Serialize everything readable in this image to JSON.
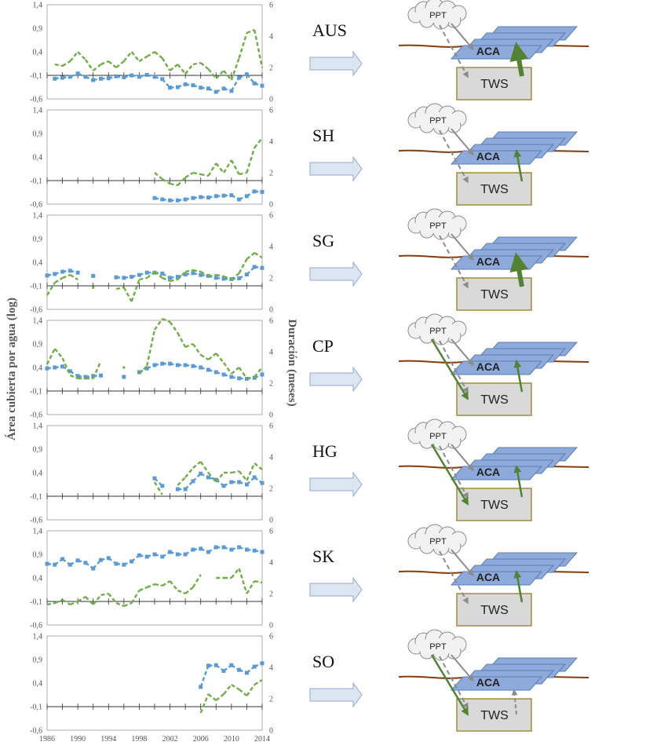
{
  "figure": {
    "ylabel_left": "Área cubierta por agua (log)",
    "ylabel_right": "Duración (meses)"
  },
  "colors": {
    "duration_series": "#70AD47",
    "area_series": "#5B9BD5",
    "arrow_green": "#548235",
    "arrow_gray": "#8C8C8C",
    "flow_arrow_fill": "#DCE6F2",
    "aca_fill": "#8EAADB",
    "tws_fill": "#D9D9D9",
    "tws_border": "#A08C3C",
    "ground_line": "#843C0C"
  },
  "diagram": {
    "ppt_label": "PPT",
    "aca_label": "ACA",
    "tws_label": "TWS"
  },
  "chart_data": [
    {
      "type": "line",
      "region": "AUS",
      "x_ticks": [
        "1986",
        "1990",
        "1994",
        "1998",
        "2002",
        "2006",
        "2010",
        "2014"
      ],
      "left_axis": {
        "ticks": [
          "1,4",
          "0,9",
          "0,4",
          "-0,1",
          "-0,6"
        ],
        "ylim": [
          -0.6,
          1.4
        ]
      },
      "right_axis": {
        "ticks": [
          "6",
          "4",
          "2",
          "0"
        ],
        "ylim": [
          0,
          6
        ]
      },
      "series": [
        {
          "axis": "left",
          "x": [
            1987,
            1988,
            1989,
            1990,
            1991,
            1992,
            1993,
            1994,
            1995,
            1996,
            1997,
            1998,
            1999,
            2000,
            2001,
            2002,
            2003,
            2004,
            2005,
            2006,
            2007,
            2008,
            2009,
            2010,
            2011,
            2012,
            2013,
            2014
          ],
          "values": [
            -0.17,
            -0.15,
            -0.13,
            -0.06,
            -0.13,
            -0.2,
            -0.17,
            -0.16,
            -0.12,
            -0.14,
            -0.1,
            -0.13,
            -0.09,
            -0.13,
            -0.18,
            -0.36,
            -0.35,
            -0.29,
            -0.31,
            -0.36,
            -0.38,
            -0.45,
            -0.38,
            -0.43,
            -0.15,
            -0.08,
            -0.27,
            -0.32
          ]
        },
        {
          "axis": "right",
          "x": [
            1987,
            1988,
            1989,
            1990,
            1991,
            1992,
            1993,
            1994,
            1995,
            1996,
            1997,
            1998,
            1999,
            2000,
            2001,
            2002,
            2003,
            2004,
            2005,
            2006,
            2007,
            2008,
            2009,
            2010,
            2011,
            2012,
            2013,
            2014
          ],
          "values": [
            2.2,
            2.1,
            2.4,
            3.0,
            2.5,
            1.8,
            2.2,
            2.4,
            2.0,
            2.4,
            3.0,
            2.4,
            2.7,
            3.0,
            2.6,
            1.8,
            2.2,
            1.6,
            2.2,
            2.3,
            1.9,
            1.3,
            1.8,
            1.2,
            2.6,
            4.2,
            4.4,
            2.0
          ]
        }
      ]
    },
    {
      "type": "line",
      "region": "SH",
      "x_ticks": [
        "1986",
        "1990",
        "1994",
        "1998",
        "2002",
        "2006",
        "2010",
        "2014"
      ],
      "left_axis": {
        "ticks": [
          "1,4",
          "0,9",
          "0,4",
          "-0,1",
          "-0,6"
        ],
        "ylim": [
          -0.6,
          1.4
        ]
      },
      "right_axis": {
        "ticks": [
          "6",
          "4",
          "2",
          "0"
        ],
        "ylim": [
          0,
          6
        ]
      },
      "series": [
        {
          "axis": "left",
          "x": [
            2000,
            2001,
            2002,
            2003,
            2004,
            2005,
            2006,
            2007,
            2008,
            2009,
            2010,
            2011,
            2012,
            2013,
            2014
          ],
          "values": [
            -0.47,
            -0.5,
            -0.52,
            -0.52,
            -0.5,
            -0.47,
            -0.45,
            -0.46,
            -0.43,
            -0.42,
            -0.41,
            -0.5,
            -0.43,
            -0.33,
            -0.34
          ]
        },
        {
          "axis": "right",
          "x": [
            2000,
            2001,
            2002,
            2003,
            2004,
            2005,
            2006,
            2007,
            2008,
            2009,
            2010,
            2011,
            2012,
            2013,
            2014
          ],
          "values": [
            2.0,
            1.6,
            1.3,
            1.2,
            1.7,
            2.0,
            1.9,
            1.8,
            2.6,
            2.0,
            2.8,
            1.9,
            2.0,
            3.6,
            4.2
          ]
        }
      ]
    },
    {
      "type": "line",
      "region": "SG",
      "x_ticks": [
        "1986",
        "1990",
        "1994",
        "1998",
        "2002",
        "2006",
        "2010",
        "2014"
      ],
      "left_axis": {
        "ticks": [
          "1,4",
          "0,9",
          "0,4",
          "-0,1",
          "-0,6"
        ],
        "ylim": [
          -0.6,
          1.4
        ]
      },
      "right_axis": {
        "ticks": [
          "6",
          "4",
          "2",
          "0"
        ],
        "ylim": [
          0,
          6
        ]
      },
      "series": [
        {
          "axis": "left",
          "x": [
            1986,
            1987,
            1988,
            1989,
            1990,
            1992,
            1995,
            1996,
            1997,
            1998,
            1999,
            2000,
            2001,
            2002,
            2003,
            2004,
            2005,
            2006,
            2007,
            2008,
            2009,
            2010,
            2011,
            2012,
            2013,
            2014
          ],
          "values": [
            0.12,
            0.15,
            0.2,
            0.22,
            0.18,
            0.11,
            0.08,
            0.07,
            0.09,
            0.13,
            0.18,
            0.18,
            0.16,
            0.07,
            0.09,
            0.14,
            0.17,
            0.13,
            0.11,
            0.07,
            0.05,
            0.04,
            0.06,
            0.14,
            0.3,
            0.28
          ]
        },
        {
          "axis": "right",
          "x": [
            1986,
            1987,
            1988,
            1989,
            1990,
            1992,
            1995,
            1996,
            1997,
            1998,
            1999,
            2000,
            2001,
            2002,
            2003,
            2004,
            2005,
            2006,
            2007,
            2008,
            2009,
            2010,
            2011,
            2012,
            2013,
            2014
          ],
          "values": [
            0.9,
            1.7,
            2.0,
            2.2,
            1.9,
            1.4,
            1.3,
            1.4,
            0.5,
            1.9,
            2.0,
            2.4,
            2.0,
            1.8,
            1.9,
            2.4,
            2.5,
            2.4,
            2.1,
            2.2,
            2.1,
            1.9,
            2.3,
            3.2,
            3.6,
            3.3
          ]
        }
      ]
    },
    {
      "type": "line",
      "region": "CP",
      "x_ticks": [
        "1986",
        "1990",
        "1994",
        "1998",
        "2002",
        "2006",
        "2010",
        "2014"
      ],
      "left_axis": {
        "ticks": [
          "1,4",
          "0,9",
          "0,4",
          "-0,1",
          "-0,6"
        ],
        "ylim": [
          -0.6,
          1.4
        ]
      },
      "right_axis": {
        "ticks": [
          "6",
          "4",
          "2",
          "0"
        ],
        "ylim": [
          0,
          6
        ]
      },
      "series": [
        {
          "axis": "left",
          "x": [
            1986,
            1987,
            1988,
            1989,
            1990,
            1991,
            1992,
            1993,
            1996,
            1998,
            1999,
            2000,
            2001,
            2002,
            2003,
            2004,
            2005,
            2006,
            2007,
            2008,
            2009,
            2010,
            2011,
            2012,
            2013,
            2014
          ],
          "values": [
            0.38,
            0.4,
            0.42,
            0.32,
            0.22,
            0.2,
            0.22,
            0.23,
            0.2,
            0.3,
            0.38,
            0.45,
            0.48,
            0.48,
            0.45,
            0.45,
            0.43,
            0.4,
            0.35,
            0.3,
            0.25,
            0.2,
            0.17,
            0.16,
            0.18,
            0.25
          ]
        },
        {
          "axis": "right",
          "x": [
            1986,
            1987,
            1988,
            1989,
            1990,
            1991,
            1992,
            1993,
            1996,
            1998,
            1999,
            2000,
            2001,
            2002,
            2003,
            2004,
            2005,
            2006,
            2007,
            2008,
            2009,
            2010,
            2011,
            2012,
            2013,
            2014
          ],
          "values": [
            3.2,
            4.2,
            3.6,
            2.5,
            2.3,
            2.3,
            2.3,
            3.4,
            3.0,
            2.6,
            3.1,
            5.4,
            6.1,
            5.9,
            5.2,
            4.3,
            4.5,
            3.8,
            3.5,
            3.9,
            3.3,
            2.6,
            3.0,
            2.3,
            2.4,
            3.0
          ]
        }
      ]
    },
    {
      "type": "line",
      "region": "HG",
      "x_ticks": [
        "1986",
        "1990",
        "1994",
        "1998",
        "2002",
        "2006",
        "2010",
        "2014"
      ],
      "left_axis": {
        "ticks": [
          "1,4",
          "0,9",
          "0,4",
          "-0,1",
          "-0,6"
        ],
        "ylim": [
          -0.6,
          1.4
        ]
      },
      "right_axis": {
        "ticks": [
          "6",
          "4",
          "2",
          "0"
        ],
        "ylim": [
          0,
          6
        ]
      },
      "series": [
        {
          "axis": "left",
          "x": [
            2000,
            2001,
            2003,
            2004,
            2005,
            2006,
            2007,
            2008,
            2009,
            2010,
            2011,
            2012,
            2013,
            2014
          ],
          "values": [
            0.28,
            0.12,
            0.05,
            0.05,
            0.22,
            0.38,
            0.3,
            0.25,
            0.12,
            0.2,
            0.2,
            0.15,
            0.3,
            0.18
          ]
        },
        {
          "axis": "right",
          "x": [
            2000,
            2001,
            2003,
            2004,
            2005,
            2006,
            2007,
            2008,
            2009,
            2010,
            2011,
            2012,
            2013,
            2014
          ],
          "values": [
            2.4,
            1.6,
            2.2,
            2.7,
            3.3,
            3.7,
            3.0,
            2.4,
            3.0,
            3.0,
            3.1,
            2.5,
            3.6,
            3.2
          ]
        }
      ]
    },
    {
      "type": "line",
      "region": "SK",
      "x_ticks": [
        "1986",
        "1990",
        "1994",
        "1998",
        "2002",
        "2006",
        "2010",
        "2014"
      ],
      "left_axis": {
        "ticks": [
          "1,4",
          "0,9",
          "0,4",
          "-0,1",
          "-0,6"
        ],
        "ylim": [
          -0.6,
          1.4
        ]
      },
      "right_axis": {
        "ticks": [
          "6",
          "4",
          "2",
          "0"
        ],
        "ylim": [
          0,
          6
        ]
      },
      "series": [
        {
          "axis": "left",
          "x": [
            1986,
            1987,
            1988,
            1989,
            1990,
            1991,
            1992,
            1993,
            1994,
            1995,
            1996,
            1997,
            1998,
            1999,
            2000,
            2001,
            2002,
            2003,
            2004,
            2005,
            2006,
            2007,
            2008,
            2009,
            2010,
            2011,
            2012,
            2013,
            2014
          ],
          "values": [
            0.7,
            0.68,
            0.8,
            0.68,
            0.77,
            0.72,
            0.6,
            0.78,
            0.82,
            0.7,
            0.68,
            0.75,
            0.88,
            0.85,
            0.9,
            0.85,
            0.95,
            0.9,
            0.9,
            1.0,
            1.02,
            0.95,
            1.05,
            1.05,
            1.0,
            1.05,
            1.0,
            0.98,
            0.95
          ]
        },
        {
          "axis": "right",
          "x": [
            1986,
            1987,
            1988,
            1989,
            1990,
            1991,
            1992,
            1993,
            1994,
            1995,
            1996,
            1997,
            1998,
            1999,
            2000,
            2001,
            2002,
            2003,
            2004,
            2005,
            2006,
            2008,
            2009,
            2010,
            2011,
            2012,
            2013,
            2014
          ],
          "values": [
            1.3,
            1.4,
            1.6,
            1.3,
            1.5,
            1.8,
            1.3,
            1.9,
            2.0,
            1.4,
            1.2,
            1.4,
            2.2,
            2.4,
            2.6,
            2.5,
            2.8,
            2.2,
            2.0,
            2.4,
            3.2,
            3.0,
            3.0,
            3.0,
            3.6,
            2.0,
            2.8,
            2.7
          ]
        }
      ]
    },
    {
      "type": "line",
      "region": "SO",
      "x_ticks": [
        "1986",
        "1990",
        "1994",
        "1998",
        "2002",
        "2006",
        "2010",
        "2014"
      ],
      "left_axis": {
        "ticks": [
          "1,4",
          "0,9",
          "0,4",
          "-0,1",
          "-0,6"
        ],
        "ylim": [
          -0.6,
          1.4
        ]
      },
      "right_axis": {
        "ticks": [
          "6",
          "4",
          "2",
          "0"
        ],
        "ylim": [
          0,
          6
        ]
      },
      "series": [
        {
          "axis": "left",
          "x": [
            2006,
            2007,
            2008,
            2009,
            2010,
            2011,
            2012,
            2013,
            2014
          ],
          "values": [
            0.32,
            0.77,
            0.78,
            0.66,
            0.78,
            0.68,
            0.62,
            0.75,
            0.82
          ]
        },
        {
          "axis": "right",
          "x": [
            2006,
            2007,
            2008,
            2009,
            2010,
            2011,
            2012,
            2013,
            2014
          ],
          "values": [
            1.1,
            2.3,
            1.9,
            2.3,
            2.9,
            2.6,
            2.2,
            2.9,
            3.2
          ]
        }
      ]
    }
  ]
}
